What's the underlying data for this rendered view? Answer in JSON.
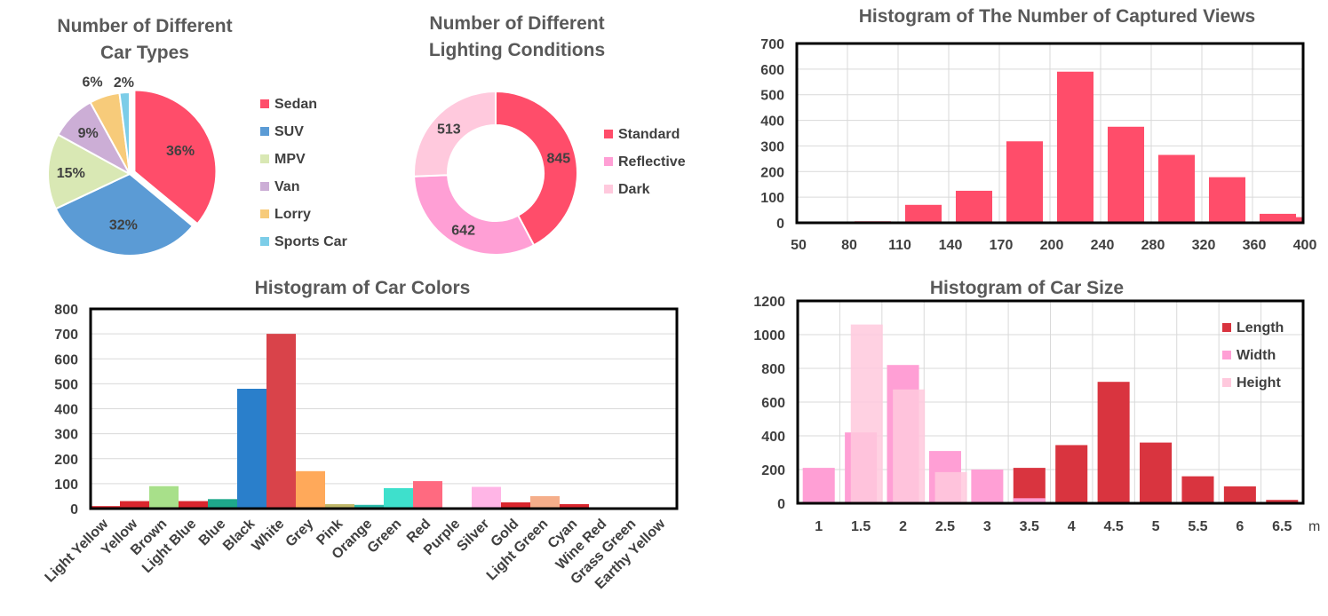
{
  "chart_data": [
    {
      "type": "pie",
      "title": "Number of Different Car Types",
      "title_lines": [
        "Number of Different",
        "Car Types"
      ],
      "slices": [
        {
          "label": "Sedan",
          "value": 36,
          "display": "36%",
          "color": "#ff4d6a"
        },
        {
          "label": "SUV",
          "value": 32,
          "display": "32%",
          "color": "#5b9bd5"
        },
        {
          "label": "MPV",
          "value": 15,
          "display": "15%",
          "color": "#d9e8b4"
        },
        {
          "label": "Van",
          "value": 9,
          "display": "9%",
          "color": "#ccaed6"
        },
        {
          "label": "Lorry",
          "value": 6,
          "display": "6%",
          "color": "#f7cb7a"
        },
        {
          "label": "Sports Car",
          "value": 2,
          "display": "2%",
          "color": "#7ccde8"
        }
      ],
      "legend_position": "right"
    },
    {
      "type": "pie",
      "variant": "donut",
      "title": "Number of Different Lighting Conditions",
      "title_lines": [
        "Number of Different",
        "Lighting Conditions"
      ],
      "slices": [
        {
          "label": "Standard",
          "value": 845,
          "display": "845",
          "color": "#ff4d6a"
        },
        {
          "label": "Reflective",
          "value": 642,
          "display": "642",
          "color": "#ff9fd5"
        },
        {
          "label": "Dark",
          "value": 513,
          "display": "513",
          "color": "#ffc9dd"
        }
      ],
      "legend_position": "right"
    },
    {
      "type": "bar",
      "title": "Histogram of The Number of Captured Views",
      "categories": [
        "50",
        "80",
        "110",
        "140",
        "170",
        "200",
        "240",
        "280",
        "320",
        "360",
        "400"
      ],
      "values": [
        3,
        6,
        70,
        125,
        318,
        590,
        375,
        265,
        178,
        35,
        22
      ],
      "ylim": [
        0,
        700
      ],
      "yticks": [
        0,
        100,
        200,
        300,
        400,
        500,
        600,
        700
      ],
      "xlabel": "",
      "ylabel": "",
      "grid": true,
      "color": "#ff4d6a"
    },
    {
      "type": "bar",
      "title": "Histogram of Car Colors",
      "categories": [
        "Light Yellow",
        "Yellow",
        "Brown",
        "Light Blue",
        "Blue",
        "Black",
        "White",
        "Grey",
        "Pink",
        "Orange",
        "Green",
        "Red",
        "Purple",
        "Silver",
        "Gold",
        "Light Green",
        "Cyan",
        "Wine Red",
        "Grass Green",
        "Earthy Yellow"
      ],
      "values": [
        10,
        30,
        90,
        30,
        38,
        480,
        700,
        150,
        18,
        15,
        82,
        110,
        5,
        87,
        25,
        50,
        18,
        5,
        3,
        5
      ],
      "colors": [
        "#d9262e",
        "#d9262e",
        "#a8e08a",
        "#d9262e",
        "#1ea98b",
        "#2a7fcb",
        "#d9434a",
        "#ffa95a",
        "#c0b86a",
        "#2ab9a9",
        "#3ee0cc",
        "#ff6a80",
        "#d9262e",
        "#ffb5e6",
        "#d9262e",
        "#f5ae8a",
        "#d9262e",
        "#d9262e",
        "#d9262e",
        "#d9262e"
      ],
      "ylim": [
        0,
        800
      ],
      "yticks": [
        0,
        100,
        200,
        300,
        400,
        500,
        600,
        700,
        800
      ],
      "xlabel": "",
      "ylabel": "",
      "grid": true
    },
    {
      "type": "bar",
      "title": "Histogram of Car Size",
      "categories": [
        "1",
        "1.5",
        "2",
        "2.5",
        "3",
        "3.5",
        "4",
        "4.5",
        "5",
        "5.5",
        "6",
        "6.5"
      ],
      "series": [
        {
          "name": "Length",
          "color": "#d9343f",
          "values": [
            0,
            0,
            0,
            0,
            0,
            210,
            345,
            720,
            360,
            160,
            100,
            20
          ]
        },
        {
          "name": "Width",
          "color": "#ff9fd5",
          "values": [
            210,
            420,
            820,
            310,
            200,
            30,
            0,
            0,
            0,
            0,
            0,
            0
          ]
        },
        {
          "name": "Height",
          "color": "#ffc9dd",
          "values": [
            0,
            1060,
            675,
            185,
            0,
            0,
            0,
            0,
            0,
            0,
            0,
            0
          ]
        }
      ],
      "ylim": [
        0,
        1200
      ],
      "yticks": [
        0,
        200,
        400,
        600,
        800,
        1000,
        1200
      ],
      "xlabel": "m",
      "ylabel": "",
      "grid": true,
      "legend_position": "top-right"
    }
  ]
}
